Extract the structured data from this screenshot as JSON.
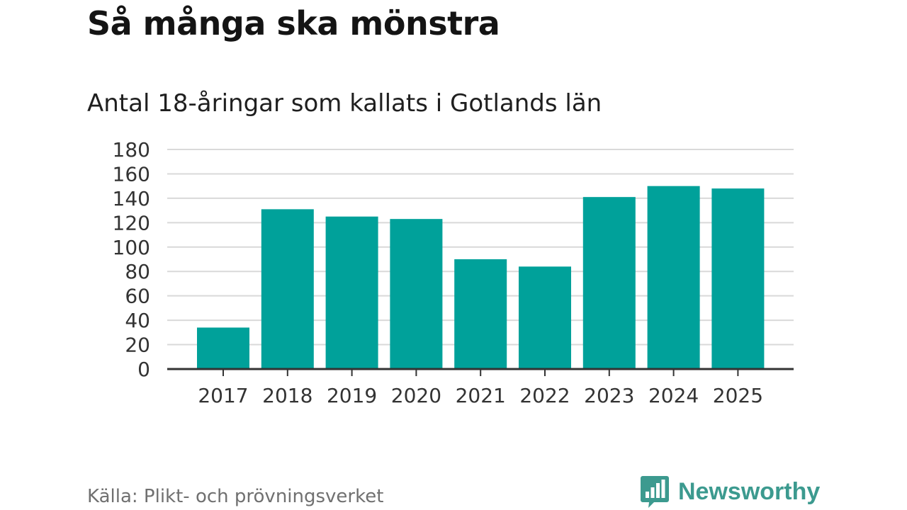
{
  "header": {
    "title": "Så många ska mönstra",
    "subtitle": "Antal 18-åringar som kallats i Gotlands län"
  },
  "footer": {
    "source": "Källa: Plikt- och prövningsverket",
    "brand": "Newsworthy"
  },
  "colors": {
    "bar": "#00a19a",
    "brand": "#3c9a8f",
    "grid": "#d9d9d9",
    "axis": "#333333",
    "tick_text": "#333333"
  },
  "icons": {
    "brand_logo": "bar-chart-speech-bubble-icon"
  },
  "chart_data": {
    "type": "bar",
    "title": "Antal 18-åringar som kallats i Gotlands län",
    "xlabel": "",
    "ylabel": "",
    "categories": [
      "2017",
      "2018",
      "2019",
      "2020",
      "2021",
      "2022",
      "2023",
      "2024",
      "2025"
    ],
    "values": [
      34,
      131,
      125,
      123,
      90,
      84,
      141,
      150,
      148
    ],
    "ylim": [
      0,
      180
    ],
    "yticks": [
      0,
      20,
      40,
      60,
      80,
      100,
      120,
      140,
      160,
      180
    ],
    "grid": true,
    "legend": "none"
  }
}
